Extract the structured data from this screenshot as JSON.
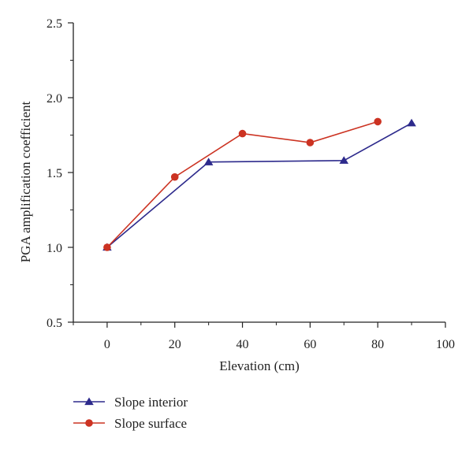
{
  "chart_data": {
    "type": "line",
    "xlabel": "Elevation (cm)",
    "ylabel": "PGA amplification coefficient",
    "xlim": [
      -10,
      100
    ],
    "ylim": [
      0.5,
      2.5
    ],
    "x_ticks": [
      0,
      20,
      40,
      60,
      80,
      100
    ],
    "x_tick_labels": [
      "0",
      "20",
      "40",
      "60",
      "80",
      "100"
    ],
    "y_ticks": [
      0.5,
      1.0,
      1.5,
      2.0,
      2.5
    ],
    "y_tick_labels": [
      "0.5",
      "1.0",
      "1.5",
      "2.0",
      "2.5"
    ],
    "grid": false,
    "legend_position": "bottom-left, below plot",
    "series": [
      {
        "name": "Slope interior",
        "marker": "triangle",
        "color": "#2d2a8c",
        "x": [
          0,
          30,
          70,
          90
        ],
        "y": [
          1.0,
          1.57,
          1.58,
          1.83
        ]
      },
      {
        "name": "Slope surface",
        "marker": "circle",
        "color": "#cc3322",
        "x": [
          0,
          20,
          40,
          60,
          80
        ],
        "y": [
          1.0,
          1.47,
          1.76,
          1.7,
          1.84
        ]
      }
    ]
  }
}
